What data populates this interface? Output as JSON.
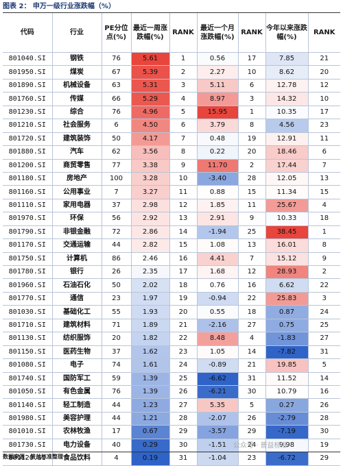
{
  "caption": "图表 2： 申万一级行业涨跌幅（%）",
  "headers": [
    "代码",
    "行业",
    "PE分位点(%)",
    "最近一周涨跌幅(%)",
    "RANK",
    "最近一个月涨跌幅(%)",
    "RANK",
    "今年以来涨跌幅(%)",
    "RANK"
  ],
  "rows": [
    [
      "801040.SI",
      "钢铁",
      "76",
      "5.61",
      "1",
      "0.56",
      "17",
      "7.85",
      "21"
    ],
    [
      "801950.SI",
      "煤炭",
      "67",
      "5.39",
      "2",
      "2.27",
      "10",
      "8.62",
      "20"
    ],
    [
      "801890.SI",
      "机械设备",
      "63",
      "5.31",
      "3",
      "5.11",
      "6",
      "12.78",
      "12"
    ],
    [
      "801760.SI",
      "传媒",
      "66",
      "5.29",
      "4",
      "8.97",
      "3",
      "14.32",
      "10"
    ],
    [
      "801230.SI",
      "综合",
      "76",
      "4.96",
      "5",
      "15.95",
      "1",
      "10.35",
      "17"
    ],
    [
      "801210.SI",
      "社会服务",
      "6",
      "4.50",
      "6",
      "3.79",
      "8",
      "4.56",
      "23"
    ],
    [
      "801720.SI",
      "建筑装饰",
      "50",
      "4.17",
      "7",
      "0.48",
      "19",
      "12.91",
      "11"
    ],
    [
      "801880.SI",
      "汽车",
      "62",
      "3.56",
      "8",
      "0.22",
      "20",
      "18.46",
      "6"
    ],
    [
      "801200.SI",
      "商贸零售",
      "77",
      "3.38",
      "9",
      "11.70",
      "2",
      "17.44",
      "7"
    ],
    [
      "801180.SI",
      "房地产",
      "100",
      "3.28",
      "10",
      "-3.40",
      "28",
      "12.05",
      "13"
    ],
    [
      "801160.SI",
      "公用事业",
      "7",
      "3.27",
      "11",
      "0.88",
      "15",
      "11.34",
      "15"
    ],
    [
      "801110.SI",
      "家用电器",
      "37",
      "2.98",
      "12",
      "1.85",
      "11",
      "25.67",
      "4"
    ],
    [
      "801970.SI",
      "环保",
      "56",
      "2.92",
      "13",
      "2.91",
      "9",
      "10.33",
      "18"
    ],
    [
      "801790.SI",
      "非银金融",
      "72",
      "2.86",
      "14",
      "-1.94",
      "25",
      "38.45",
      "1"
    ],
    [
      "801170.SI",
      "交通运输",
      "44",
      "2.82",
      "15",
      "1.08",
      "13",
      "16.01",
      "8"
    ],
    [
      "801750.SI",
      "计算机",
      "86",
      "2.46",
      "16",
      "4.41",
      "7",
      "15.12",
      "9"
    ],
    [
      "801780.SI",
      "银行",
      "26",
      "2.35",
      "17",
      "1.68",
      "12",
      "28.93",
      "2"
    ],
    [
      "801960.SI",
      "石油石化",
      "50",
      "2.02",
      "18",
      "0.76",
      "16",
      "6.62",
      "22"
    ],
    [
      "801770.SI",
      "通信",
      "23",
      "1.97",
      "19",
      "-0.94",
      "22",
      "25.83",
      "3"
    ],
    [
      "801030.SI",
      "基础化工",
      "55",
      "1.93",
      "20",
      "0.55",
      "18",
      "0.87",
      "24"
    ],
    [
      "801710.SI",
      "建筑材料",
      "71",
      "1.89",
      "21",
      "-2.16",
      "27",
      "0.75",
      "25"
    ],
    [
      "801130.SI",
      "纺织服饰",
      "20",
      "1.82",
      "22",
      "8.48",
      "4",
      "-1.83",
      "27"
    ],
    [
      "801150.SI",
      "医药生物",
      "37",
      "1.62",
      "23",
      "1.05",
      "14",
      "-7.82",
      "31"
    ],
    [
      "801080.SI",
      "电子",
      "74",
      "1.61",
      "24",
      "-0.89",
      "21",
      "19.85",
      "5"
    ],
    [
      "801740.SI",
      "国防军工",
      "59",
      "1.39",
      "25",
      "-6.62",
      "31",
      "11.52",
      "14"
    ],
    [
      "801050.SI",
      "有色金属",
      "76",
      "1.39",
      "26",
      "-6.21",
      "30",
      "10.79",
      "16"
    ],
    [
      "801140.SI",
      "轻工制造",
      "44",
      "1.23",
      "27",
      "5.35",
      "5",
      "0.27",
      "26"
    ],
    [
      "801980.SI",
      "美容护理",
      "44",
      "1.21",
      "28",
      "-2.07",
      "26",
      "-2.79",
      "28"
    ],
    [
      "801010.SI",
      "农林牧渔",
      "17",
      "0.67",
      "29",
      "-3.57",
      "29",
      "-7.19",
      "30"
    ],
    [
      "801730.SI",
      "电力设备",
      "40",
      "0.29",
      "30",
      "-1.51",
      "24",
      "9.98",
      "19"
    ],
    [
      "801120.SI",
      "食品饮料",
      "4",
      "0.19",
      "31",
      "-1.04",
      "23",
      "-6.72",
      "29"
    ]
  ],
  "source": "数据来源：普益标准整理",
  "watermark": "公众号 · 普益标准",
  "colors": {
    "high": "#e8453c",
    "mid": "#ffffff",
    "low": "#2f63c7",
    "border": "#b8c4d8"
  }
}
